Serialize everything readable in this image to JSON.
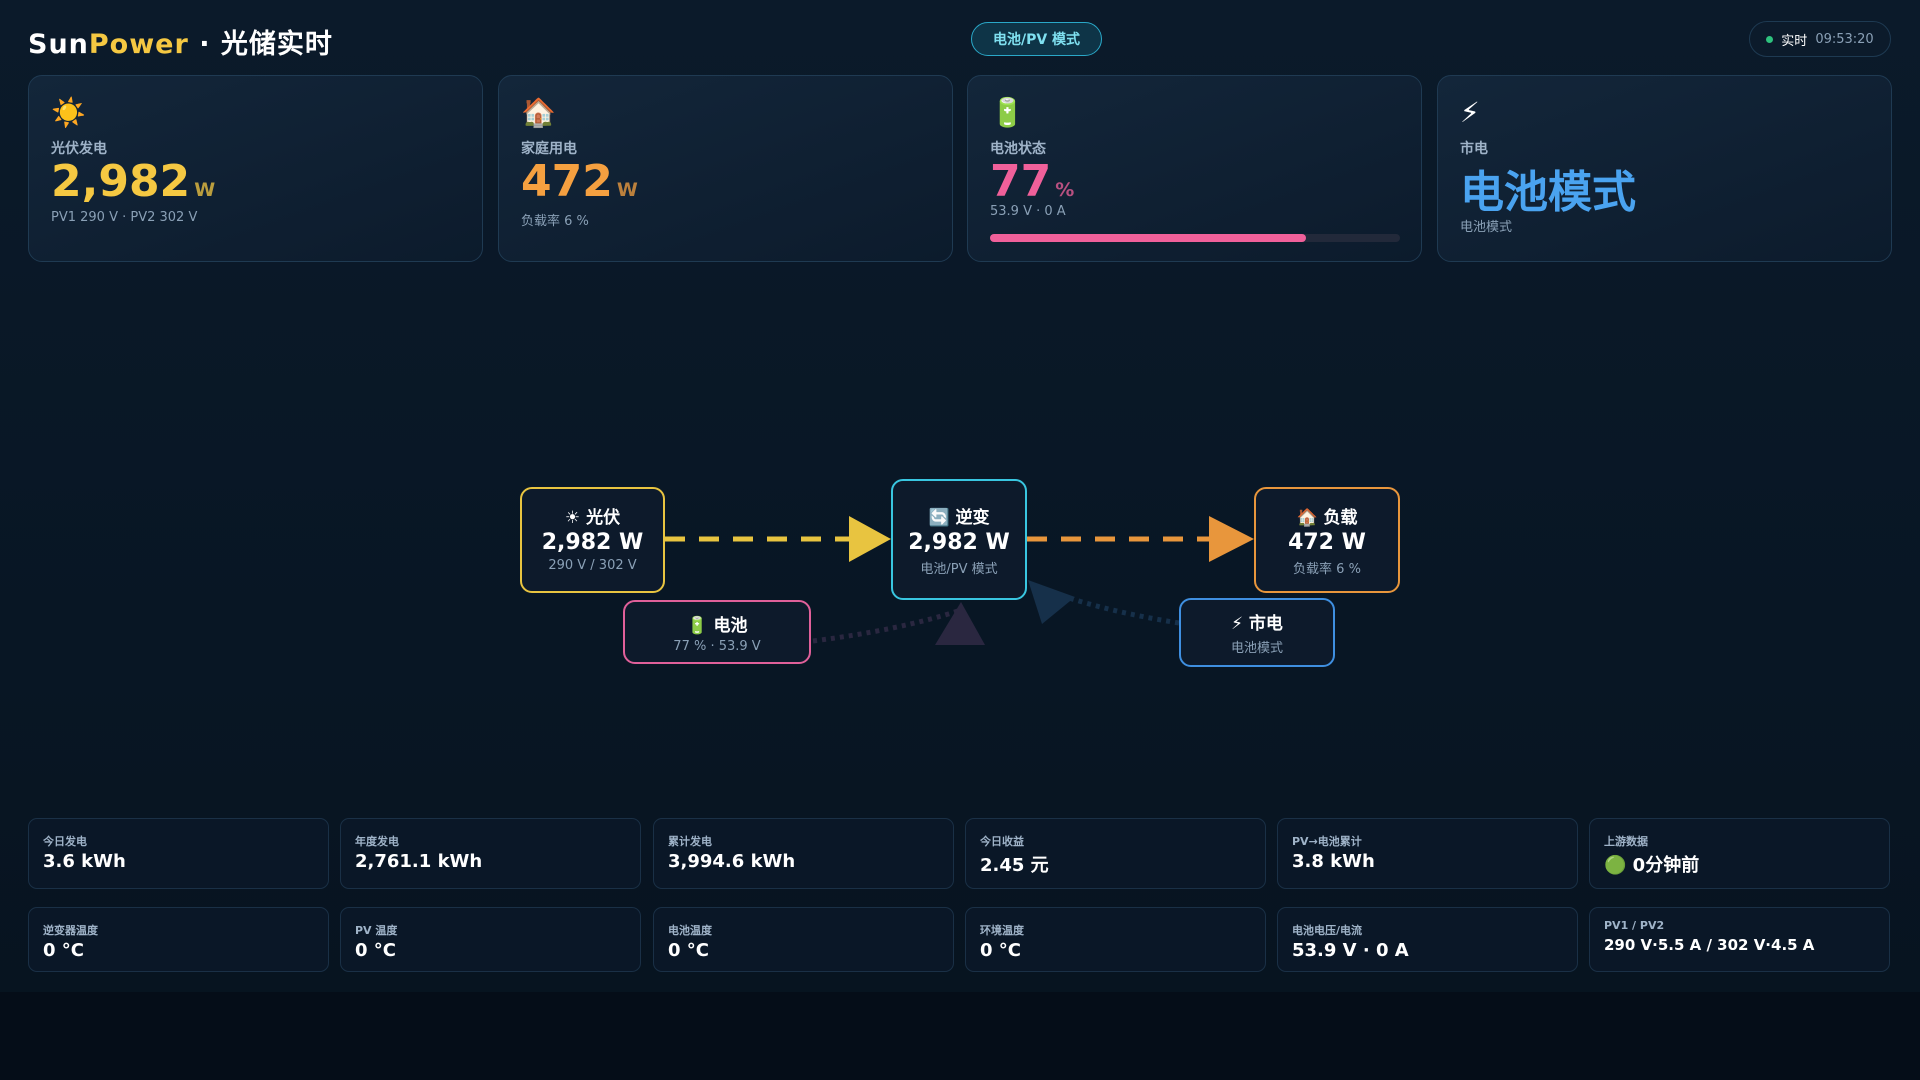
{
  "header": {
    "brand_a": "Sun",
    "brand_b": "Power",
    "brand_c": " · 光储实时",
    "mode": "电池/PV 模式",
    "live": "实时",
    "time": "09:53:20"
  },
  "cards": [
    {
      "icon": "☀️",
      "label": "光伏发电",
      "value": "2,982",
      "unit": "W",
      "sub": "PV1 290 V · PV2 302 V"
    },
    {
      "icon": "🏠",
      "label": "家庭用电",
      "value": "472",
      "unit": "W",
      "sub": "负载率 6 %"
    },
    {
      "icon": "🔋",
      "label": "电池状态",
      "value": 77,
      "unit": "%",
      "sub": "53.9 V · 0 A"
    },
    {
      "icon": "⚡",
      "label": "市电",
      "value": "电池模式",
      "sub": "电池模式"
    }
  ],
  "flow": {
    "nodes": [
      {
        "title": "☀ 光伏",
        "value": "2,982 W",
        "sub": "290 V / 302 V"
      },
      {
        "title": "🔄 逆变",
        "value": "2,982 W",
        "sub": "电池/PV 模式"
      },
      {
        "title": "🏠 负载",
        "value": "472 W",
        "sub": "负载率 6 %"
      },
      {
        "title": "🔋 电池",
        "sub": "77 % · 53.9 V"
      },
      {
        "title": "⚡ 市电",
        "sub": "电池模式"
      }
    ]
  },
  "stats": [
    [
      {
        "label": "今日发电",
        "value": "3.6 kWh"
      },
      {
        "label": "年度发电",
        "value": "2,761.1 kWh"
      },
      {
        "label": "累计发电",
        "value": "3,994.6 kWh"
      },
      {
        "label": "今日收益",
        "value": "2.45 元"
      },
      {
        "label": "PV→电池累计",
        "value": "3.8 kWh"
      },
      {
        "label": "上游数据",
        "value": "🟢 0分钟前"
      }
    ],
    [
      {
        "label": "逆变器温度",
        "value": "0 °C"
      },
      {
        "label": "PV 温度",
        "value": "0 °C"
      },
      {
        "label": "电池温度",
        "value": "0 °C"
      },
      {
        "label": "环境温度",
        "value": "0 °C"
      },
      {
        "label": "电池电压/电流",
        "value": "53.9 V · 0 A"
      },
      {
        "label": "PV1 / PV2",
        "value": "290 V·5.5 A / 302 V·4.5 A"
      }
    ]
  ]
}
